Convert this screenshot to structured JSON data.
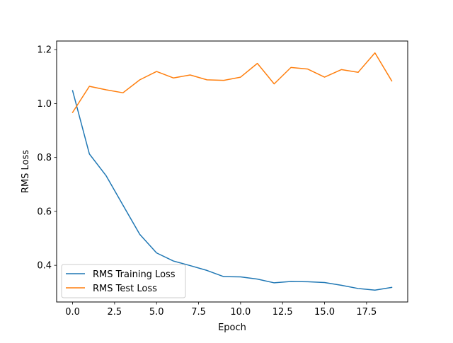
{
  "chart_data": {
    "type": "line",
    "title": "",
    "xlabel": "Epoch",
    "ylabel": "RMS Loss",
    "xlim": [
      -0.95,
      19.95
    ],
    "ylim": [
      0.264,
      1.232
    ],
    "xticks": [
      0.0,
      2.5,
      5.0,
      7.5,
      10.0,
      12.5,
      15.0,
      17.5
    ],
    "xtick_labels": [
      "0.0",
      "2.5",
      "5.0",
      "7.5",
      "10.0",
      "12.5",
      "15.0",
      "17.5"
    ],
    "yticks": [
      0.4,
      0.6,
      0.8,
      1.0,
      1.2
    ],
    "ytick_labels": [
      "0.4",
      "0.6",
      "0.8",
      "1.0",
      "1.2"
    ],
    "grid": false,
    "legend_position": "lower-left",
    "x": [
      0,
      1,
      2,
      3,
      4,
      5,
      6,
      7,
      8,
      9,
      10,
      11,
      12,
      13,
      14,
      15,
      16,
      17,
      18,
      19
    ],
    "series": [
      {
        "name": "RMS Training Loss",
        "color": "#1f77b4",
        "values": [
          1.048,
          0.813,
          0.732,
          0.623,
          0.515,
          0.446,
          0.416,
          0.399,
          0.381,
          0.358,
          0.357,
          0.349,
          0.335,
          0.34,
          0.339,
          0.336,
          0.326,
          0.314,
          0.308,
          0.318
        ]
      },
      {
        "name": "RMS Test Loss",
        "color": "#ff7f0e",
        "values": [
          0.967,
          1.064,
          1.051,
          1.04,
          1.088,
          1.119,
          1.095,
          1.106,
          1.088,
          1.086,
          1.098,
          1.149,
          1.073,
          1.134,
          1.128,
          1.098,
          1.126,
          1.116,
          1.188,
          1.084
        ]
      }
    ]
  }
}
